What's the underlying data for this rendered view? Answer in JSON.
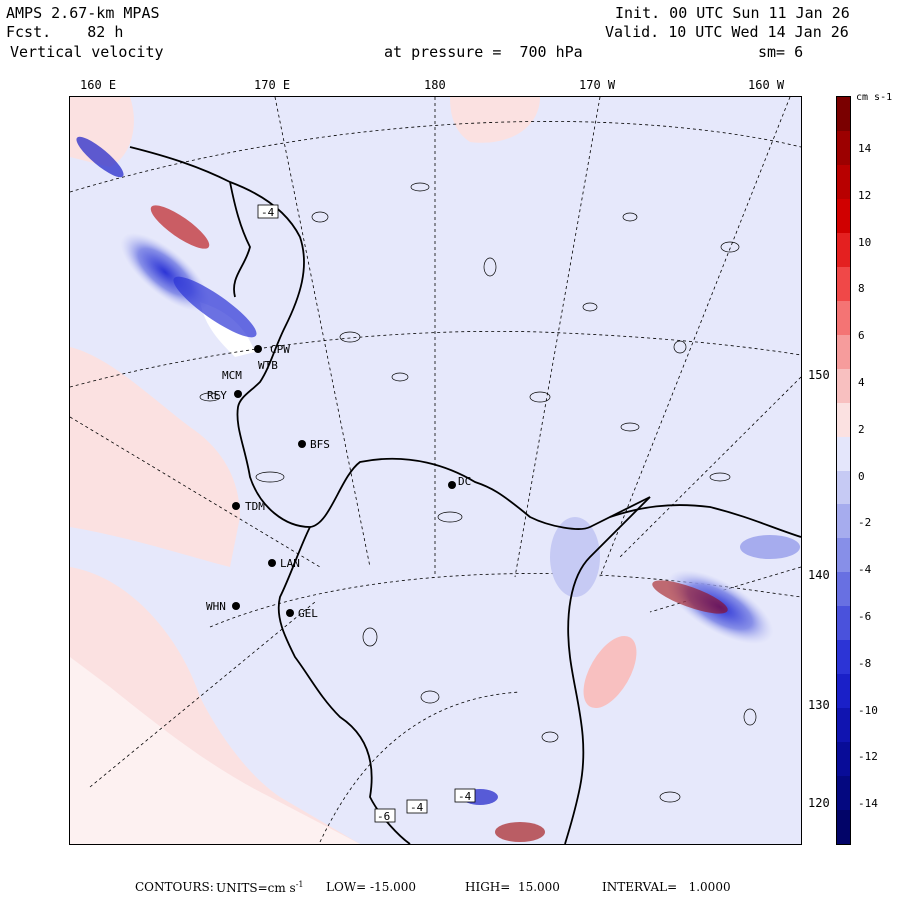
{
  "header": {
    "model": "AMPS 2.67-km MPAS",
    "forecast_label": "Fcst.",
    "forecast_hours": "82 h",
    "field": "Vertical velocity",
    "init": "Init. 00 UTC Sun 11 Jan 26",
    "valid": "Valid. 10 UTC Wed 14 Jan 26",
    "level": "at pressure =  700 hPa",
    "smoothing": "sm= 6"
  },
  "longitude_labels": [
    "160 E",
    "170 E",
    "180",
    "170 W",
    "160 W"
  ],
  "latitude_labels": [
    "150 W",
    "140 W",
    "130 W",
    "120 W"
  ],
  "stations": [
    "CPW",
    "MCM",
    "WTB",
    "REY",
    "BFS",
    "DC",
    "TDM",
    "LAN",
    "WHN",
    "GEL"
  ],
  "contour_boxes": [
    "-4",
    "-4",
    "-4",
    "-6"
  ],
  "colorbar": {
    "units": "cm s-1",
    "ticks": [
      "14",
      "12",
      "10",
      "8",
      "6",
      "4",
      "2",
      "0",
      "-2",
      "-4",
      "-6",
      "-8",
      "-10",
      "-12",
      "-14"
    ],
    "colors": [
      "#7a0000",
      "#9c0000",
      "#b80000",
      "#d00000",
      "#e42020",
      "#f04848",
      "#f47474",
      "#f69c9c",
      "#f8c0c0",
      "#fbe1e1",
      "#e4e6fb",
      "#c6caf4",
      "#a6acee",
      "#878fe8",
      "#6870e2",
      "#4a52dc",
      "#2c34d6",
      "#1a20c8",
      "#1014b0",
      "#080c98",
      "#040880",
      "#020468"
    ]
  },
  "footer": {
    "contours_label": "CONTOURS:",
    "units_label": "UNITS=cm s",
    "units_exp": "-1",
    "low": "LOW= -15.000",
    "high": "HIGH=  15.000",
    "interval": "INTERVAL=   1.0000"
  },
  "colors": {
    "background_positive": "#fbe4e4",
    "background_negative": "#e6e8fb",
    "strong_negative": "#1a20c8",
    "strong_positive": "#b80000"
  }
}
